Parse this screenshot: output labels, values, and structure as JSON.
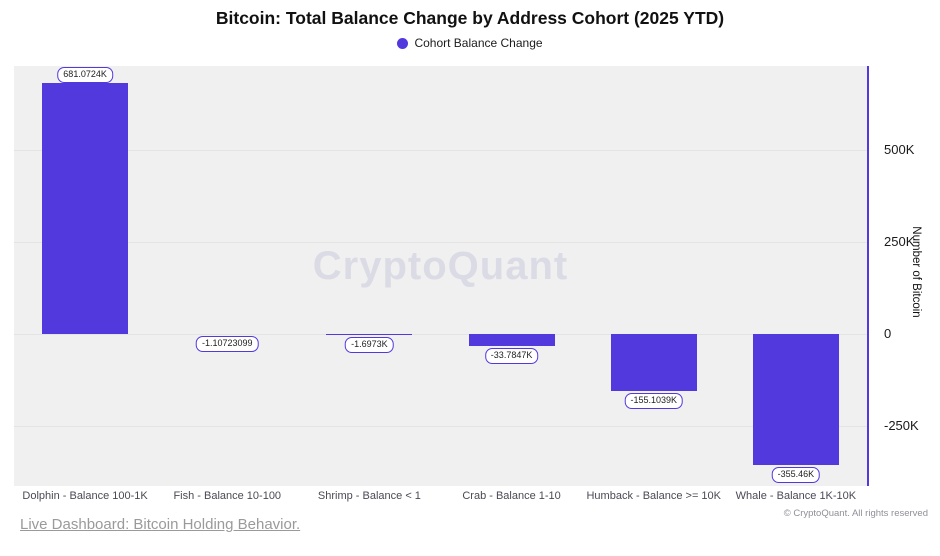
{
  "title": "Bitcoin: Total Balance Change by Address Cohort (2025 YTD)",
  "legend": {
    "label": "Cohort Balance Change"
  },
  "watermark": "CryptoQuant",
  "y_axis": {
    "label": "Number of Bitcoin",
    "ticks": [
      "500K",
      "250K",
      "0",
      "-250K"
    ],
    "tick_values": [
      500000,
      250000,
      0,
      -250000
    ]
  },
  "chart_data": {
    "type": "bar",
    "title": "Bitcoin: Total Balance Change by Address Cohort (2025 YTD)",
    "series_name": "Cohort Balance Change",
    "categories": [
      "Dolphin - Balance 100-1K",
      "Fish - Balance 10-100",
      "Shrimp - Balance < 1",
      "Crab - Balance 1-10",
      "Humback - Balance >= 10K",
      "Whale - Balance 1K-10K"
    ],
    "values": [
      681072.4,
      -1.10723099,
      -1697.3,
      -33784.7,
      -155103.9,
      -355460
    ],
    "value_labels": [
      "681.0724K",
      "-1.10723099",
      "-1.6973K",
      "-33.7847K",
      "-155.1039K",
      "-355.46K"
    ],
    "xlabel": "",
    "ylabel": "Number of Bitcoin",
    "ylim": [
      -380000,
      730000
    ],
    "grid": true,
    "legend_position": "top"
  },
  "footer": {
    "link": "Live Dashboard: Bitcoin Holding Behavior.",
    "copyright": "© CryptoQuant. All rights reserved"
  },
  "colors": {
    "accent": "#5239DD",
    "plot_bg": "#F0F0F0",
    "gridline": "#E4E4E4",
    "watermark_text": "#DBDBE5"
  }
}
